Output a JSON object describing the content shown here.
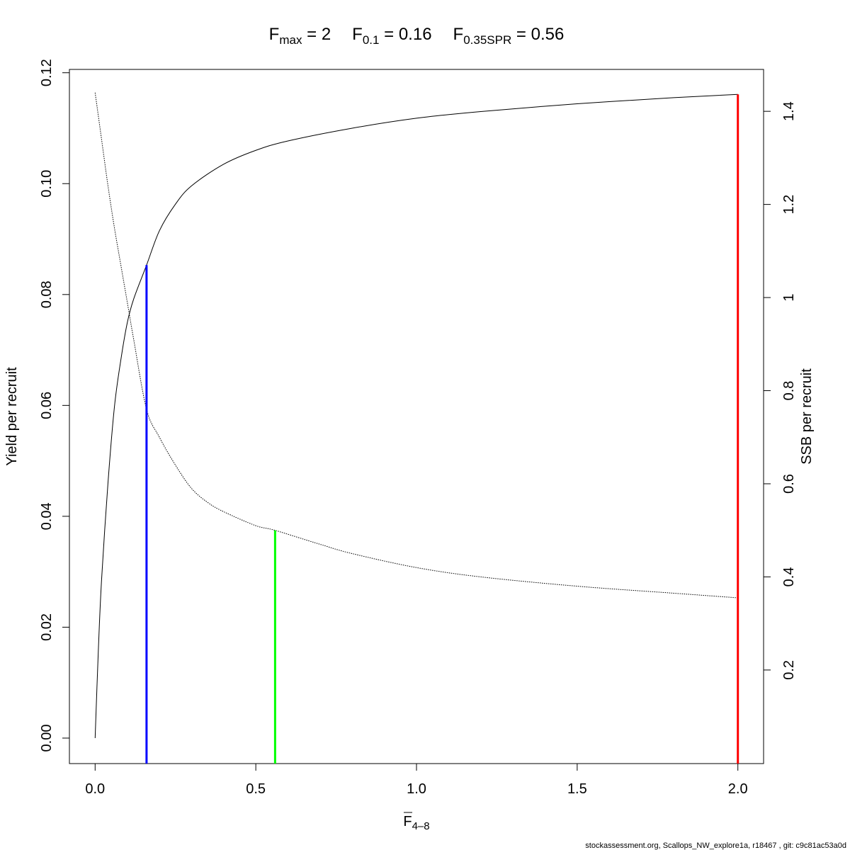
{
  "chart_data": {
    "type": "line",
    "title_parts": [
      {
        "main": "F",
        "sub": "max",
        "eq": " = 2"
      },
      {
        "main": "F",
        "sub": "0.1",
        "eq": " = 0.16"
      },
      {
        "main": "F",
        "sub": "0.35SPR",
        "eq": " = 0.56"
      }
    ],
    "xlabel": {
      "main": "F",
      "sub": "4–8"
    },
    "ylabel": "Yield per recruit",
    "y2label": "SSB per recruit",
    "xlim": [
      -0.08,
      2.08
    ],
    "ylim": [
      -0.0046,
      0.1206
    ],
    "y2lim": [
      -0.001,
      1.49
    ],
    "x_ticks": [
      {
        "v": 0.0,
        "label": "0.0"
      },
      {
        "v": 0.5,
        "label": "0.5"
      },
      {
        "v": 1.0,
        "label": "1.0"
      },
      {
        "v": 1.5,
        "label": "1.5"
      },
      {
        "v": 2.0,
        "label": "2.0"
      }
    ],
    "y_ticks": [
      {
        "v": 0.0,
        "label": "0.00"
      },
      {
        "v": 0.02,
        "label": "0.02"
      },
      {
        "v": 0.04,
        "label": "0.04"
      },
      {
        "v": 0.06,
        "label": "0.06"
      },
      {
        "v": 0.08,
        "label": "0.08"
      },
      {
        "v": 0.1,
        "label": "0.10"
      },
      {
        "v": 0.12,
        "label": "0.12"
      }
    ],
    "y2_ticks": [
      {
        "v": 0.2,
        "label": "0.2"
      },
      {
        "v": 0.4,
        "label": "0.4"
      },
      {
        "v": 0.6,
        "label": "0.6"
      },
      {
        "v": 0.8,
        "label": "0.8"
      },
      {
        "v": 1.0,
        "label": "1"
      },
      {
        "v": 1.2,
        "label": "1.2"
      },
      {
        "v": 1.4,
        "label": "1.4"
      }
    ],
    "series": [
      {
        "axis": "left",
        "style": "solid",
        "color": "#000000",
        "x": [
          0,
          0.01,
          0.02,
          0.04,
          0.06,
          0.08,
          0.1,
          0.12,
          0.16,
          0.2,
          0.25,
          0.3,
          0.4,
          0.5,
          0.6,
          0.8,
          1.0,
          1.2,
          1.5,
          1.8,
          2.0
        ],
        "y": [
          0,
          0.0158,
          0.0285,
          0.046,
          0.0597,
          0.0682,
          0.0749,
          0.0792,
          0.0853,
          0.0915,
          0.0963,
          0.0996,
          0.1035,
          0.106,
          0.1077,
          0.11,
          0.1118,
          0.113,
          0.1144,
          0.1155,
          0.1161
        ]
      },
      {
        "axis": "right",
        "style": "dotted",
        "color": "#000000",
        "x": [
          0,
          0.02,
          0.04,
          0.06,
          0.08,
          0.1,
          0.12,
          0.16,
          0.2,
          0.25,
          0.3,
          0.35,
          0.4,
          0.5,
          0.56,
          0.7,
          0.8,
          1.0,
          1.2,
          1.5,
          1.8,
          2.0
        ],
        "y": [
          1.44,
          1.34,
          1.24,
          1.15,
          1.07,
          0.99,
          0.91,
          0.76,
          0.7,
          0.64,
          0.59,
          0.56,
          0.54,
          0.51,
          0.5,
          0.47,
          0.45,
          0.42,
          0.4,
          0.38,
          0.365,
          0.355
        ]
      }
    ],
    "ref_lines": [
      {
        "name": "F0.1",
        "x": 0.16,
        "axis": "left",
        "top": 0.0853,
        "color": "#0000ff"
      },
      {
        "name": "F0.35SPR",
        "x": 0.56,
        "axis": "right",
        "top": 0.5,
        "color": "#00ff00"
      },
      {
        "name": "Fmax",
        "x": 2.0,
        "axis": "left",
        "top": 0.1161,
        "color": "#ff0000"
      }
    ]
  },
  "footer": "stockassessment.org, Scallops_NW_explore1a, r18467 , git: c9c81ac53a0d"
}
